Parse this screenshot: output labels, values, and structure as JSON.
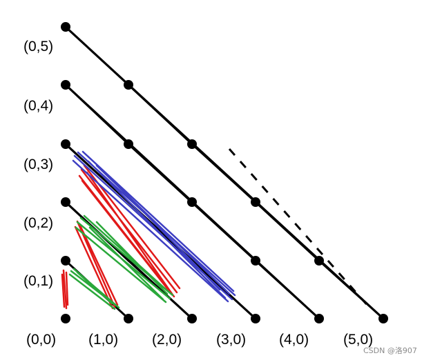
{
  "diagram": {
    "labels": {
      "y5": "(0,5)",
      "y4": "(0,4)",
      "y3": "(0,3)",
      "y2": "(0,2)",
      "y1": "(0,1)",
      "x0": "(0,0)",
      "x1": "(1,0)",
      "x2": "(2,0)",
      "x3": "(3,0)",
      "x4": "(4,0)",
      "x5": "(5,0)"
    },
    "points": [
      {
        "id": "p-0-0",
        "x": 0,
        "y": 0
      },
      {
        "id": "p-0-1",
        "x": 0,
        "y": 1
      },
      {
        "id": "p-0-2",
        "x": 0,
        "y": 2
      },
      {
        "id": "p-0-3",
        "x": 0,
        "y": 3
      },
      {
        "id": "p-0-4",
        "x": 0,
        "y": 4
      },
      {
        "id": "p-0-5",
        "x": 0,
        "y": 5
      },
      {
        "id": "p-1-0",
        "x": 1,
        "y": 0
      },
      {
        "id": "p-2-0",
        "x": 2,
        "y": 0
      },
      {
        "id": "p-3-0",
        "x": 3,
        "y": 0
      },
      {
        "id": "p-4-0",
        "x": 4,
        "y": 0
      },
      {
        "id": "p-5-0",
        "x": 5,
        "y": 0
      },
      {
        "id": "p-1-4",
        "x": 1,
        "y": 4
      },
      {
        "id": "p-1-3",
        "x": 1,
        "y": 3
      },
      {
        "id": "p-1-2",
        "x": 1,
        "y": 2
      },
      {
        "id": "p-1-1",
        "x": 1,
        "y": 1
      },
      {
        "id": "p-2-3",
        "x": 2,
        "y": 3
      },
      {
        "id": "p-2-2",
        "x": 2,
        "y": 2
      },
      {
        "id": "p-2-1",
        "x": 2,
        "y": 1
      },
      {
        "id": "p-3-2",
        "x": 3,
        "y": 2
      },
      {
        "id": "p-3-1",
        "x": 3,
        "y": 1
      },
      {
        "id": "p-4-1",
        "x": 4,
        "y": 1
      }
    ],
    "colors": {
      "line": "#000000",
      "red_scribble": "#e11919",
      "green_scribble": "#2aa83a",
      "blue_scribble": "#3d3ec2",
      "dash": "#000000"
    }
  },
  "watermark": {
    "text": "CSDN @洛907"
  }
}
